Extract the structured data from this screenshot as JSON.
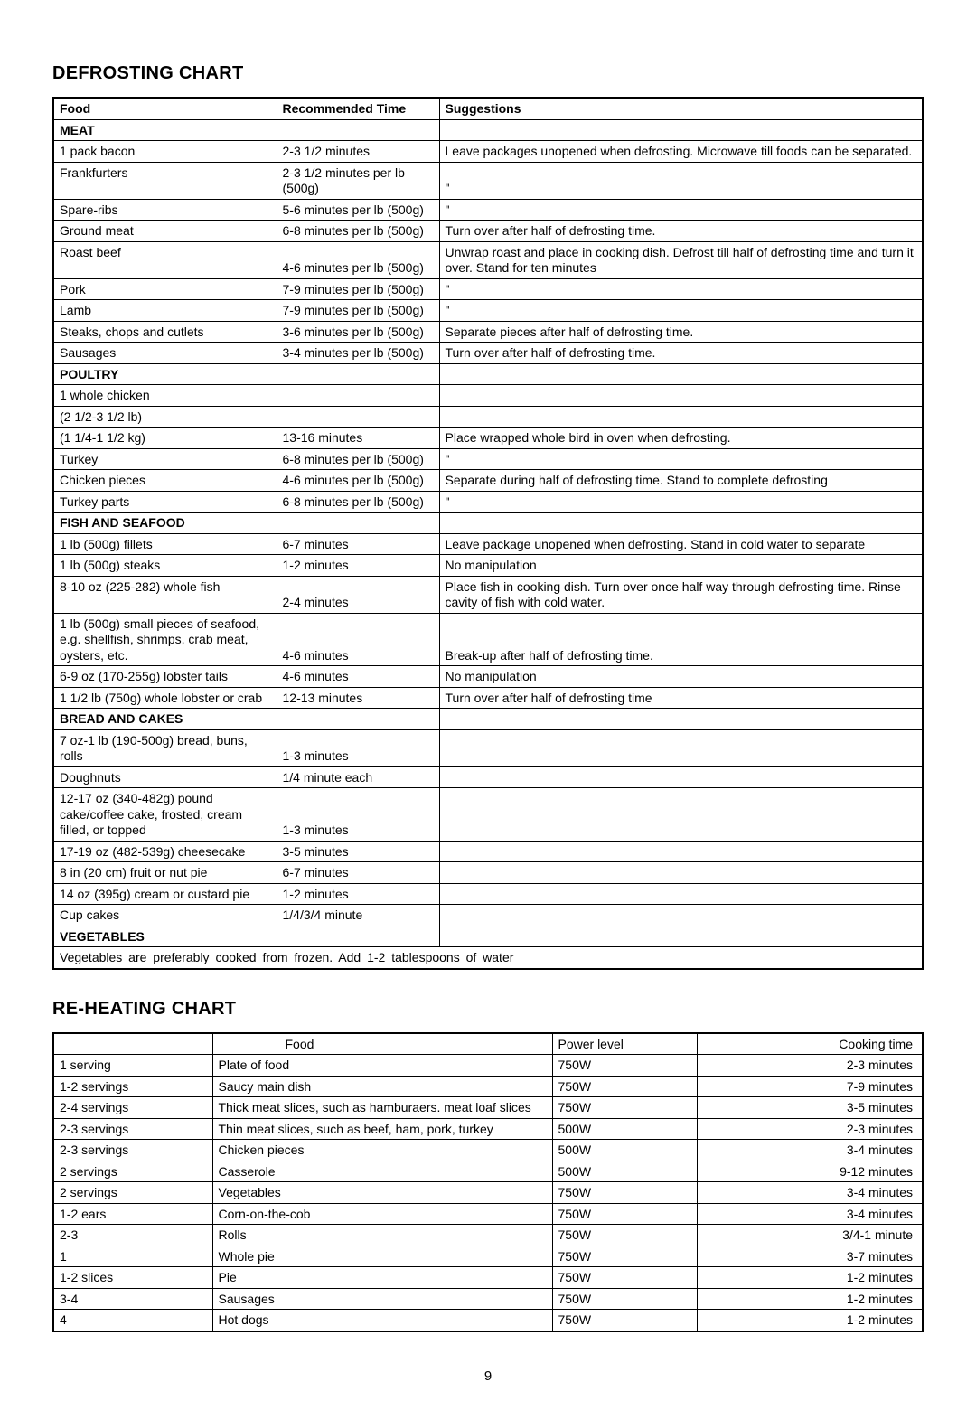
{
  "titles": {
    "defrost": "DEFROSTING CHART",
    "reheat": "RE-HEATING CHART"
  },
  "defrost_headers": {
    "c1": "Food",
    "c2": "Recommended Time",
    "c3": "Suggestions"
  },
  "defrost_sections": {
    "meat": "MEAT",
    "poultry": "POULTRY",
    "fish": "FISH AND SEAFOOD",
    "bread": "BREAD AND CAKES",
    "veg": "VEGETABLES"
  },
  "defrost_rows": {
    "meat": [
      {
        "f": "1 pack bacon",
        "t": "2-3 1/2 minutes",
        "s": "Leave packages unopened when defrosting. Microwave till foods can be separated."
      },
      {
        "f": "Frankfurters",
        "t": "2-3 1/2 minutes per lb (500g)",
        "s": "\""
      },
      {
        "f": "Spare-ribs",
        "t": "5-6 minutes per lb (500g)",
        "s": "\""
      },
      {
        "f": "Ground meat",
        "t": "6-8 minutes per lb (500g)",
        "s": "Turn over after half of defrosting time."
      },
      {
        "f": "Roast beef",
        "t": "4-6 minutes per lb (500g)",
        "s": "Unwrap roast and place in cooking dish. Defrost till half of defrosting time and turn it over. Stand for ten minutes"
      },
      {
        "f": "Pork",
        "t": "7-9 minutes per lb (500g)",
        "s": "\""
      },
      {
        "f": "Lamb",
        "t": "7-9 minutes per lb (500g)",
        "s": "\""
      },
      {
        "f": "Steaks, chops and cutlets",
        "t": "3-6 minutes per lb (500g)",
        "s": "Separate pieces after half of defrosting time."
      },
      {
        "f": "Sausages",
        "t": "3-4 minutes per lb (500g)",
        "s": "Turn over after half of defrosting time."
      }
    ],
    "poultry": [
      {
        "f": "1 whole chicken",
        "t": "",
        "s": ""
      },
      {
        "f": "(2 1/2-3 1/2 lb)",
        "t": "",
        "s": ""
      },
      {
        "f": "(1 1/4-1 1/2 kg)",
        "t": "13-16 minutes",
        "s": "Place wrapped whole bird in oven when defrosting."
      },
      {
        "f": "Turkey",
        "t": "6-8 minutes per lb (500g)",
        "s": "\""
      },
      {
        "f": "Chicken pieces",
        "t": "4-6 minutes per lb (500g)",
        "s": "Separate during half of defrosting time. Stand to complete defrosting"
      },
      {
        "f": "Turkey parts",
        "t": "6-8 minutes per lb (500g)",
        "s": "\""
      }
    ],
    "fish": [
      {
        "f": "1 lb (500g) fillets",
        "t": "6-7 minutes",
        "s": "Leave package unopened when defrosting. Stand in cold water to separate"
      },
      {
        "f": "1 lb (500g) steaks",
        "t": "1-2 minutes",
        "s": "No manipulation"
      },
      {
        "f": "8-10 oz (225-282) whole fish",
        "t": "2-4 minutes",
        "s": "Place fish in cooking dish. Turn over once half way through defrosting time. Rinse cavity of fish with cold water."
      },
      {
        "f": "1 lb (500g) small pieces of seafood, e.g. shellfish, shrimps, crab meat, oysters, etc.",
        "t": "4-6 minutes",
        "s": "Break-up after half of defrosting time."
      },
      {
        "f": "6-9 oz (170-255g) lobster tails",
        "t": "4-6 minutes",
        "s": "No manipulation"
      },
      {
        "f": "1 1/2 lb (750g) whole lobster or crab",
        "t": "12-13 minutes",
        "s": "Turn over after half of defrosting time"
      }
    ],
    "bread": [
      {
        "f": "7 oz-1 lb (190-500g) bread, buns, rolls",
        "t": "1-3 minutes",
        "s": ""
      },
      {
        "f": "Doughnuts",
        "t": "1/4 minute each",
        "s": ""
      },
      {
        "f": "12-17 oz (340-482g) pound cake/coffee cake, frosted, cream filled, or topped",
        "t": "1-3 minutes",
        "s": ""
      },
      {
        "f": "17-19 oz (482-539g) cheesecake",
        "t": "3-5 minutes",
        "s": ""
      },
      {
        "f": "8 in (20 cm) fruit or nut pie",
        "t": "6-7 minutes",
        "s": ""
      },
      {
        "f": "14 oz (395g) cream or custard pie",
        "t": "1-2 minutes",
        "s": ""
      },
      {
        "f": "Cup cakes",
        "t": "1/4/3/4 minute",
        "s": ""
      }
    ],
    "veg_note": "Vegetables are preferably cooked from frozen. Add 1-2 tablespoons of water"
  },
  "reheat_headers": {
    "c1": "",
    "c2": "Food",
    "c3": "Power level",
    "c4": "Cooking time"
  },
  "reheat_rows": [
    {
      "q": "1 serving",
      "f": "Plate of food",
      "p": "750W",
      "t": "2-3 minutes"
    },
    {
      "q": "1-2 servings",
      "f": "Saucy main dish",
      "p": "750W",
      "t": "7-9 minutes"
    },
    {
      "q": "2-4 servings",
      "f": "Thick meat slices, such as hamburaers. meat loaf slices",
      "p": "750W",
      "t": "3-5 minutes"
    },
    {
      "q": "2-3 servings",
      "f": "Thin meat slices, such as beef, ham, pork, turkey",
      "p": "500W",
      "t": "2-3 minutes"
    },
    {
      "q": "2-3 servings",
      "f": "Chicken pieces",
      "p": "500W",
      "t": "3-4 minutes"
    },
    {
      "q": "2 servings",
      "f": "Casserole",
      "p": "500W",
      "t": "9-12 minutes"
    },
    {
      "q": "2 servings",
      "f": "Vegetables",
      "p": "750W",
      "t": "3-4 minutes"
    },
    {
      "q": "1-2 ears",
      "f": "Corn-on-the-cob",
      "p": "750W",
      "t": "3-4 minutes"
    },
    {
      "q": "2-3",
      "f": "Rolls",
      "p": "750W",
      "t": "3/4-1 minute"
    },
    {
      "q": "1",
      "f": "Whole pie",
      "p": "750W",
      "t": "3-7 minutes"
    },
    {
      "q": "1-2 slices",
      "f": "Pie",
      "p": "750W",
      "t": "1-2 minutes"
    },
    {
      "q": "3-4",
      "f": "Sausages",
      "p": "750W",
      "t": "1-2 minutes"
    },
    {
      "q": "4",
      "f": "Hot dogs",
      "p": "750W",
      "t": "1-2 minutes"
    }
  ],
  "page_number": "9"
}
